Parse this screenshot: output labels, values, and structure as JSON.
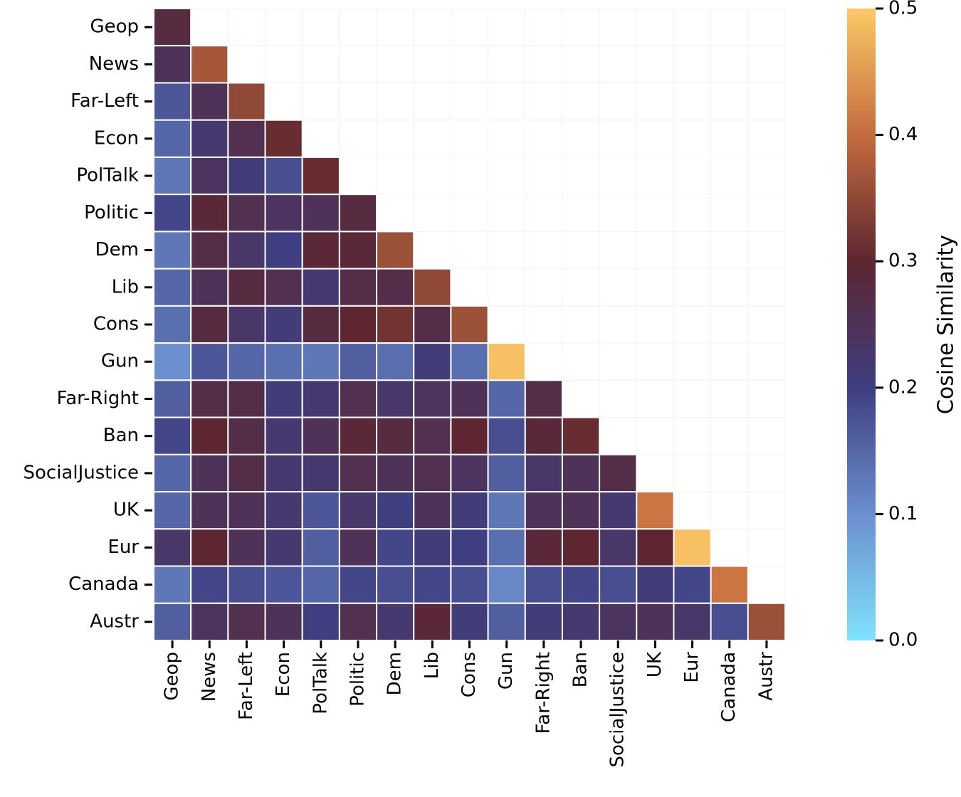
{
  "chart_data": {
    "type": "heatmap",
    "categories": [
      "Geop",
      "News",
      "Far-Left",
      "Econ",
      "PolTalk",
      "Politic",
      "Dem",
      "Lib",
      "Cons",
      "Gun",
      "Far-Right",
      "Ban",
      "SocialJustice",
      "UK",
      "Eur",
      "Canada",
      "Austr"
    ],
    "values": [
      [
        0.28
      ],
      [
        0.25,
        0.37
      ],
      [
        0.17,
        0.25,
        0.35
      ],
      [
        0.15,
        0.22,
        0.26,
        0.31
      ],
      [
        0.13,
        0.24,
        0.21,
        0.18,
        0.31
      ],
      [
        0.19,
        0.29,
        0.26,
        0.24,
        0.25,
        0.28
      ],
      [
        0.13,
        0.27,
        0.23,
        0.2,
        0.29,
        0.29,
        0.36
      ],
      [
        0.15,
        0.25,
        0.28,
        0.26,
        0.22,
        0.27,
        0.27,
        0.35
      ],
      [
        0.14,
        0.28,
        0.23,
        0.21,
        0.28,
        0.3,
        0.32,
        0.27,
        0.36
      ],
      [
        0.1,
        0.17,
        0.15,
        0.14,
        0.13,
        0.16,
        0.14,
        0.21,
        0.14,
        0.49
      ],
      [
        0.16,
        0.27,
        0.27,
        0.21,
        0.22,
        0.26,
        0.23,
        0.24,
        0.25,
        0.15,
        0.27
      ],
      [
        0.19,
        0.3,
        0.27,
        0.22,
        0.25,
        0.29,
        0.28,
        0.26,
        0.3,
        0.18,
        0.29,
        0.31
      ],
      [
        0.15,
        0.25,
        0.27,
        0.22,
        0.22,
        0.26,
        0.25,
        0.26,
        0.24,
        0.16,
        0.23,
        0.25,
        0.27
      ],
      [
        0.15,
        0.25,
        0.25,
        0.22,
        0.17,
        0.23,
        0.2,
        0.25,
        0.21,
        0.13,
        0.25,
        0.25,
        0.22,
        0.41
      ],
      [
        0.23,
        0.3,
        0.25,
        0.22,
        0.16,
        0.25,
        0.19,
        0.21,
        0.2,
        0.14,
        0.29,
        0.3,
        0.23,
        0.3,
        0.49
      ],
      [
        0.13,
        0.19,
        0.18,
        0.17,
        0.15,
        0.19,
        0.18,
        0.19,
        0.18,
        0.11,
        0.18,
        0.19,
        0.18,
        0.21,
        0.19,
        0.41
      ],
      [
        0.16,
        0.24,
        0.26,
        0.25,
        0.2,
        0.26,
        0.22,
        0.29,
        0.21,
        0.16,
        0.21,
        0.22,
        0.24,
        0.25,
        0.23,
        0.18,
        0.36
      ]
    ],
    "colors": [
      "#80e2fb",
      "#6b8fcf",
      "#3f3e80",
      "#5d2630",
      "#c46c3e",
      "#fcc967"
    ],
    "zlim": [
      0,
      0.5
    ],
    "zticks": [
      {
        "value": 0,
        "label": "0.0"
      },
      0.1,
      0.2,
      0.3,
      0.4,
      0.5
    ],
    "colorbar_label": "Cosine Similarity"
  }
}
